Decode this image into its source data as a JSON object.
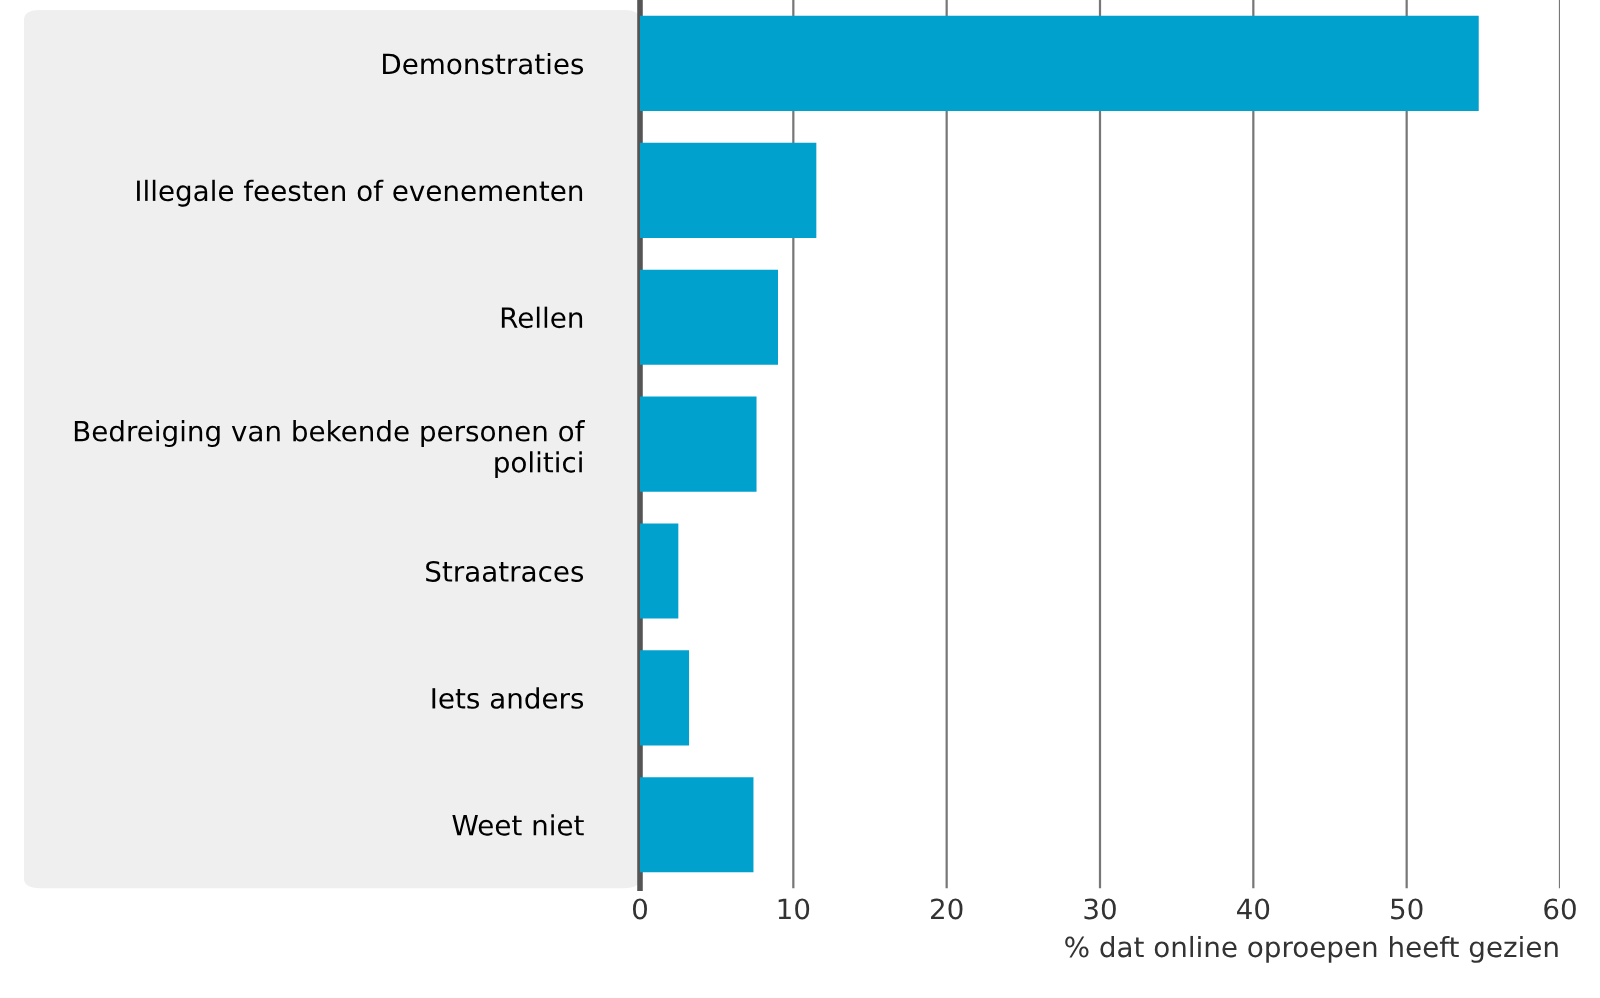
{
  "chart_data": {
    "type": "bar",
    "orientation": "horizontal",
    "categories": [
      "Demonstraties",
      "Illegale feesten of evenementen",
      "Rellen",
      "Bedreiging van bekende personen of\npolitici",
      "Straatraces",
      "Iets anders",
      "Weet niet"
    ],
    "values": [
      54.7,
      11.5,
      9.0,
      7.6,
      2.5,
      3.2,
      7.4
    ],
    "color": "#00a1cd",
    "xlim": [
      0,
      60
    ],
    "xticks": [
      0,
      10,
      20,
      30,
      40,
      50,
      60
    ],
    "xlabel": "% dat online oproepen heeft gezien",
    "grid": "x"
  }
}
